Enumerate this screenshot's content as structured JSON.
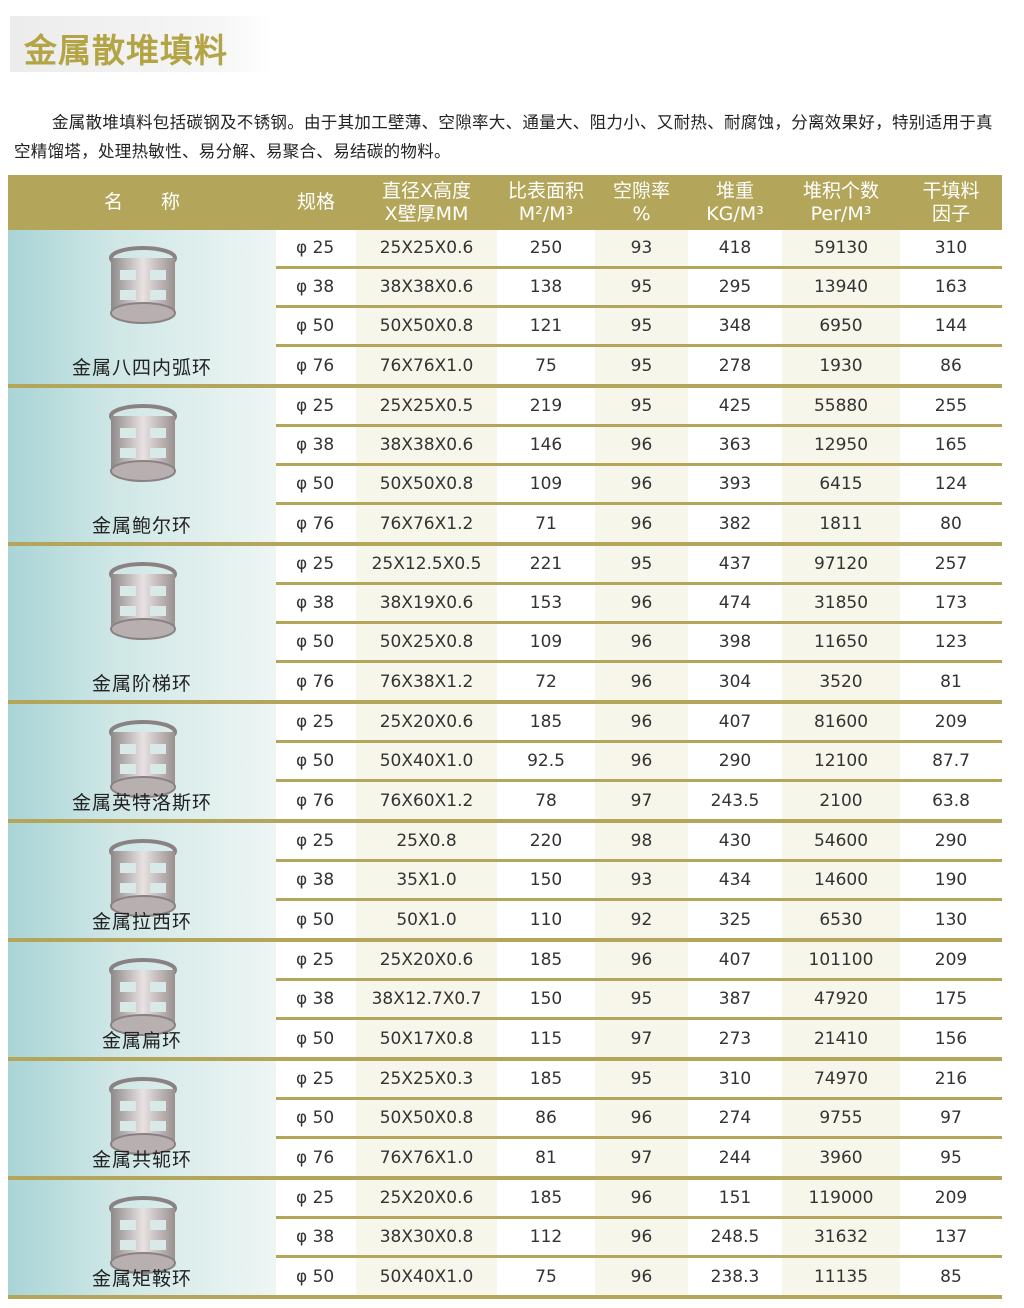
{
  "title": "金属散堆填料",
  "intro": "金属散堆填料包括碳钢及不锈钢。由于其加工壁薄、空隙率大、通量大、阻力小、又耐热、耐腐蚀，分离效果好，特别适用于真空精馏塔，处理热敏性、易分解、易聚合、易结碳的物料。",
  "colors": {
    "header": "#b3a65a",
    "title": "#b3a445",
    "image_bg": "#a9d4d6"
  },
  "table": {
    "headers": [
      "名　　称",
      "规格",
      "直径X高度\nX壁厚MM",
      "比表面积\nM²/M³",
      "空隙率\n%",
      "堆重\nKG/M³",
      "堆积个数\nPer/M³",
      "干填料\n因子"
    ],
    "groups": [
      {
        "name": "金属八四内弧环",
        "icon": "inner-arc-ring-image",
        "rows": [
          [
            "φ 25",
            "25X25X0.6",
            "250",
            "93",
            "418",
            "59130",
            "310"
          ],
          [
            "φ 38",
            "38X38X0.6",
            "138",
            "95",
            "295",
            "13940",
            "163"
          ],
          [
            "φ 50",
            "50X50X0.8",
            "121",
            "95",
            "348",
            "6950",
            "144"
          ],
          [
            "φ 76",
            "76X76X1.0",
            "75",
            "95",
            "278",
            "1930",
            "86"
          ]
        ]
      },
      {
        "name": "金属鲍尔环",
        "icon": "pall-ring-image",
        "rows": [
          [
            "φ 25",
            "25X25X0.5",
            "219",
            "95",
            "425",
            "55880",
            "255"
          ],
          [
            "φ 38",
            "38X38X0.6",
            "146",
            "96",
            "363",
            "12950",
            "165"
          ],
          [
            "φ 50",
            "50X50X0.8",
            "109",
            "96",
            "393",
            "6415",
            "124"
          ],
          [
            "φ 76",
            "76X76X1.2",
            "71",
            "96",
            "382",
            "1811",
            "80"
          ]
        ]
      },
      {
        "name": "金属阶梯环",
        "icon": "cascade-ring-image",
        "rows": [
          [
            "φ 25",
            "25X12.5X0.5",
            "221",
            "95",
            "437",
            "97120",
            "257"
          ],
          [
            "φ 38",
            "38X19X0.6",
            "153",
            "96",
            "474",
            "31850",
            "173"
          ],
          [
            "φ 50",
            "50X25X0.8",
            "109",
            "96",
            "398",
            "11650",
            "123"
          ],
          [
            "φ 76",
            "76X38X1.2",
            "72",
            "96",
            "304",
            "3520",
            "81"
          ]
        ]
      },
      {
        "name": "金属英特洛斯环",
        "icon": "intalox-ring-image",
        "rows": [
          [
            "φ 25",
            "25X20X0.6",
            "185",
            "96",
            "407",
            "81600",
            "209"
          ],
          [
            "φ 50",
            "50X40X1.0",
            "92.5",
            "96",
            "290",
            "12100",
            "87.7"
          ],
          [
            "φ 76",
            "76X60X1.2",
            "78",
            "97",
            "243.5",
            "2100",
            "63.8"
          ]
        ]
      },
      {
        "name": "金属拉西环",
        "icon": "raschig-ring-image",
        "rows": [
          [
            "φ 25",
            "25X0.8",
            "220",
            "98",
            "430",
            "54600",
            "290"
          ],
          [
            "φ 38",
            "35X1.0",
            "150",
            "93",
            "434",
            "14600",
            "190"
          ],
          [
            "φ 50",
            "50X1.0",
            "110",
            "92",
            "325",
            "6530",
            "130"
          ]
        ]
      },
      {
        "name": "金属扁环",
        "icon": "flat-ring-image",
        "rows": [
          [
            "φ 25",
            "25X20X0.6",
            "185",
            "96",
            "407",
            "101100",
            "209"
          ],
          [
            "φ 38",
            "38X12.7X0.7",
            "150",
            "95",
            "387",
            "47920",
            "175"
          ],
          [
            "φ 50",
            "50X17X0.8",
            "115",
            "97",
            "273",
            "21410",
            "156"
          ]
        ]
      },
      {
        "name": "金属共轭环",
        "icon": "conjugate-ring-image",
        "rows": [
          [
            "φ 25",
            "25X25X0.3",
            "185",
            "95",
            "310",
            "74970",
            "216"
          ],
          [
            "φ 50",
            "50X50X0.8",
            "86",
            "96",
            "274",
            "9755",
            "97"
          ],
          [
            "φ 76",
            "76X76X1.0",
            "81",
            "97",
            "244",
            "3960",
            "95"
          ]
        ]
      },
      {
        "name": "金属矩鞍环",
        "icon": "saddle-ring-image",
        "rows": [
          [
            "φ 25",
            "25X20X0.6",
            "185",
            "96",
            "151",
            "119000",
            "209"
          ],
          [
            "φ 38",
            "38X30X0.8",
            "112",
            "96",
            "248.5",
            "31632",
            "137"
          ],
          [
            "φ 50",
            "50X40X1.0",
            "75",
            "96",
            "238.3",
            "11135",
            "85"
          ]
        ]
      }
    ]
  }
}
